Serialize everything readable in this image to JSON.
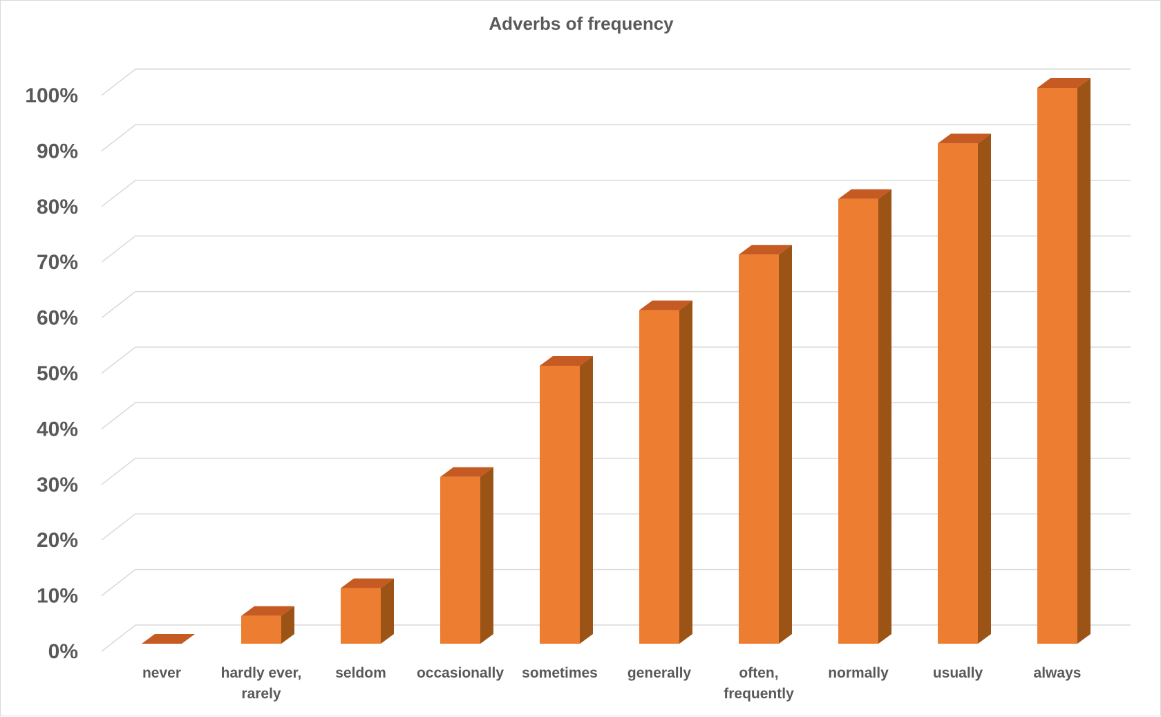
{
  "chart_data": {
    "type": "bar",
    "title": "Adverbs of frequency",
    "categories": [
      [
        "never"
      ],
      [
        "hardly ever,",
        "rarely"
      ],
      [
        "seldom"
      ],
      [
        "occasionally"
      ],
      [
        "sometimes"
      ],
      [
        "generally"
      ],
      [
        "often,",
        "frequently"
      ],
      [
        "normally"
      ],
      [
        "usually"
      ],
      [
        "always"
      ]
    ],
    "values": [
      0,
      5,
      10,
      30,
      50,
      60,
      70,
      80,
      90,
      100
    ],
    "ylim": [
      0,
      100
    ],
    "yticks": [
      "0%",
      "10%",
      "20%",
      "30%",
      "40%",
      "50%",
      "60%",
      "70%",
      "80%",
      "90%",
      "100%"
    ],
    "xlabel": "",
    "ylabel": "",
    "grid": true,
    "style": "3d-column",
    "colors": {
      "front": "#ED7D31",
      "side": "#9C5316",
      "top": "#C55A22",
      "grid": "#d9d9d9",
      "text": "#595959"
    }
  }
}
